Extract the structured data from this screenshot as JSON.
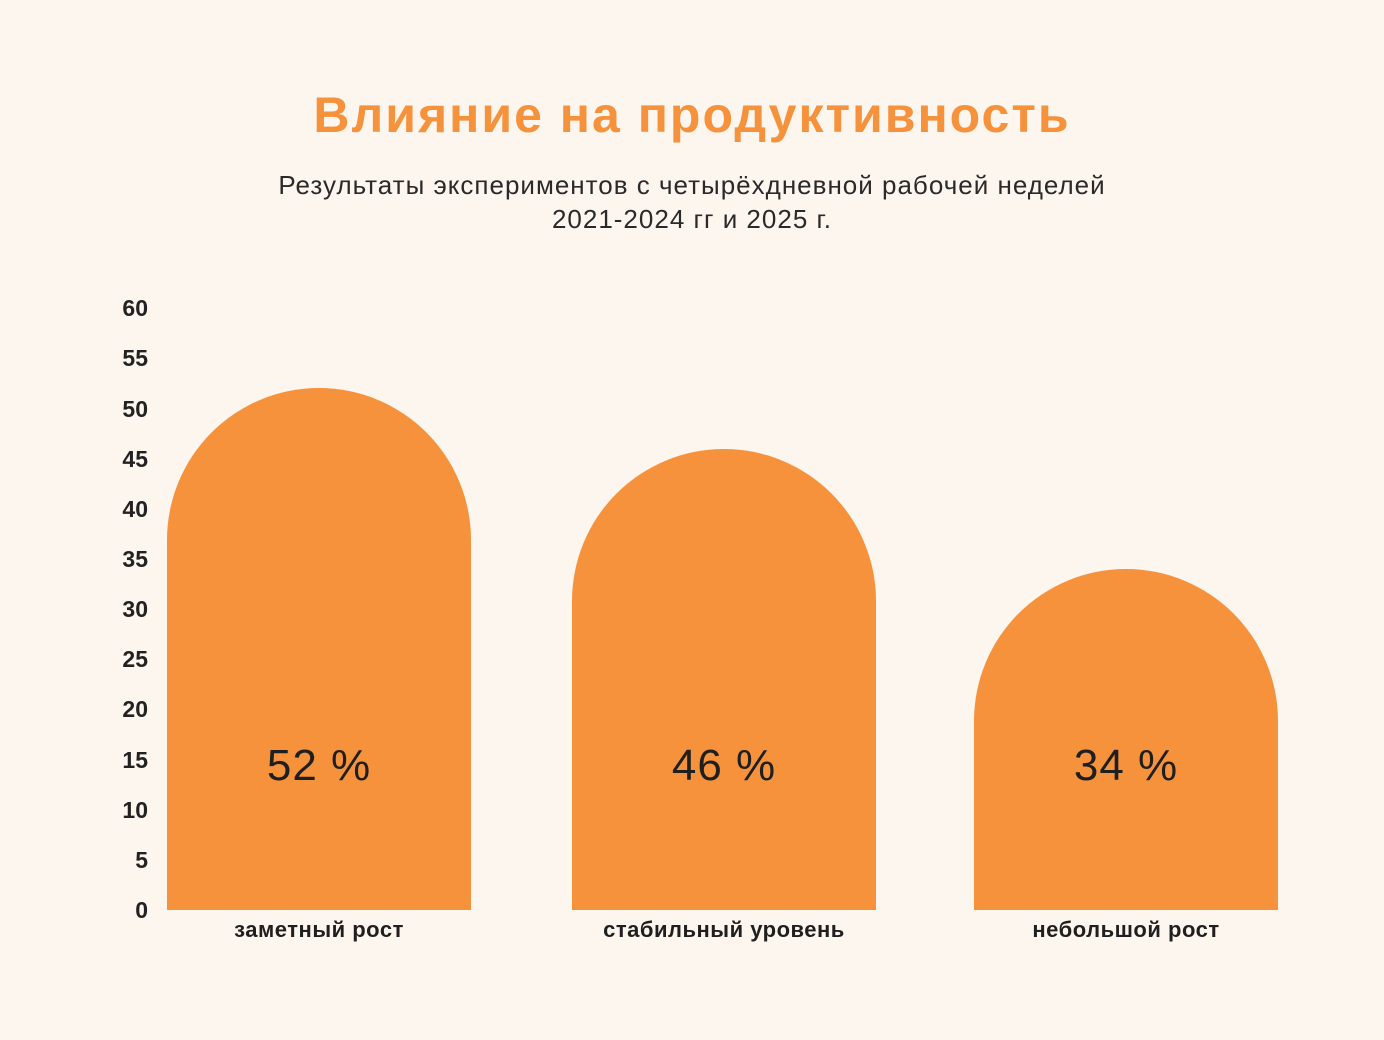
{
  "page": {
    "background_color": "#FDF6EF"
  },
  "header": {
    "title": "Влияние на продуктивность",
    "title_color": "#F6913C",
    "subtitle_line1": "Результаты экспериментов с четырёхдневной рабочей неделей",
    "subtitle_line2": "2021-2024 гг и 2025 г."
  },
  "chart_data": {
    "type": "bar",
    "title": "Влияние на продуктивность",
    "subtitle": "Результаты экспериментов с четырёхдневной рабочей неделей 2021-2024 гг и 2025 г.",
    "categories": [
      "заметный рост",
      "стабильный уровень",
      "небольшой рост"
    ],
    "values": [
      52,
      46,
      34
    ],
    "value_labels": [
      "52 %",
      "46 %",
      "34 %"
    ],
    "y_ticks": [
      60,
      55,
      50,
      45,
      40,
      35,
      30,
      25,
      20,
      15,
      10,
      5,
      0
    ],
    "ylim": [
      0,
      60
    ],
    "xlabel": "",
    "ylabel": "",
    "grid": false,
    "legend": false,
    "bar_color": "#F7923C",
    "label_color": "#1F1F1F",
    "bar_shape": "rounded-top-arch"
  }
}
